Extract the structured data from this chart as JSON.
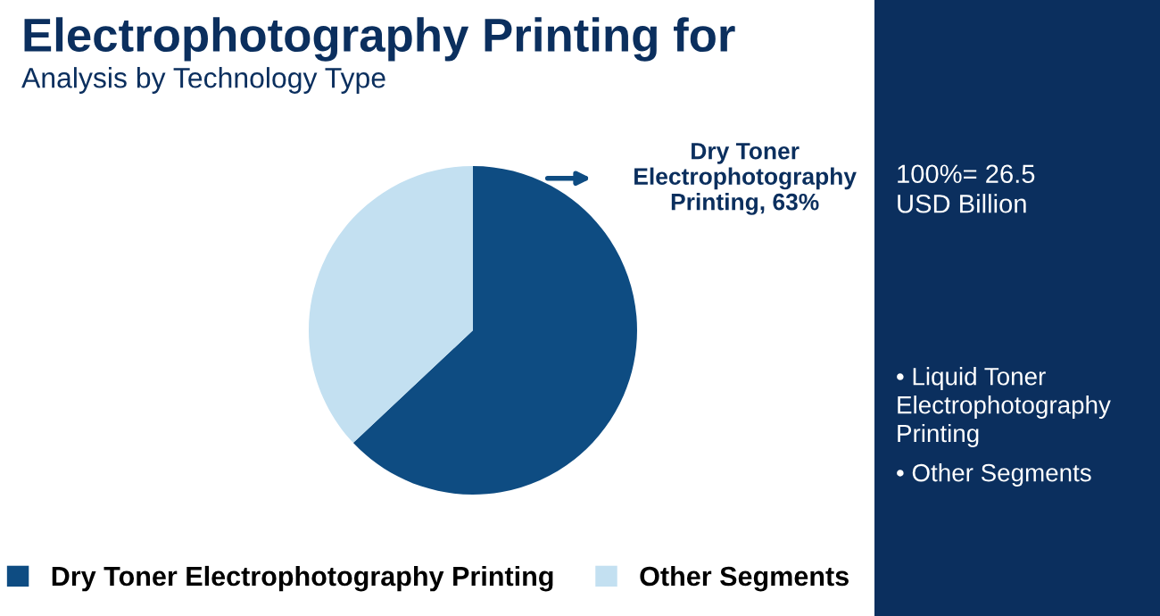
{
  "chart_data": {
    "type": "pie",
    "title": "Electrophotography Printing for",
    "subtitle": "Analysis by Technology Type",
    "categories": [
      "Dry Toner Electrophotography Printing",
      "Other Segments"
    ],
    "values": [
      63,
      37
    ],
    "colors": [
      "#0e4c82",
      "#c3e0f1"
    ],
    "value_labels": [
      "Dry Toner Electrophotography Printing, 63%",
      null
    ],
    "legend": "bottom",
    "annotations": [
      "100%= 26.5 USD Billion",
      "• Liquid Toner Electrophotography Printing",
      "• Other Segments"
    ]
  }
}
